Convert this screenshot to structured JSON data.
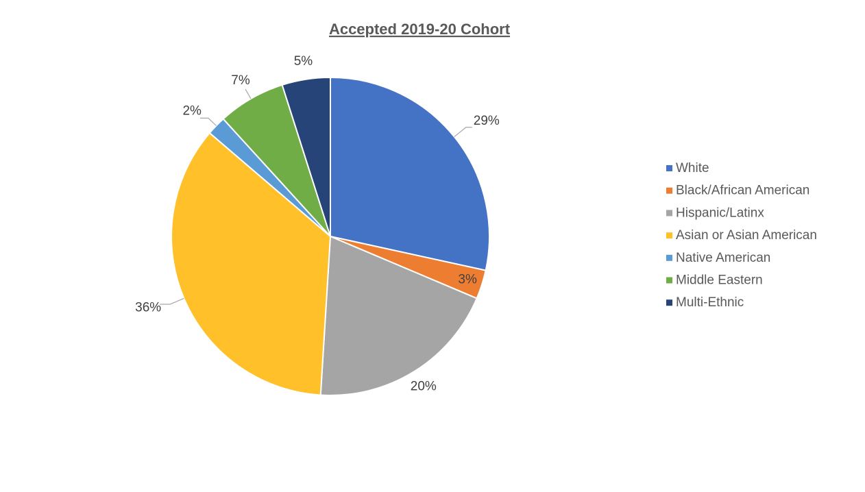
{
  "chart_data": {
    "type": "pie",
    "title": "Accepted 2019-20 Cohort",
    "legend_position": "right",
    "slices": [
      {
        "label": "White",
        "value": 29,
        "display": "29%",
        "color": "#4472C4"
      },
      {
        "label": "Black/African American",
        "value": 3,
        "display": "3%",
        "color": "#ED7D31"
      },
      {
        "label": "Hispanic/Latinx",
        "value": 20,
        "display": "20%",
        "color": "#A5A5A5"
      },
      {
        "label": "Asian or Asian American",
        "value": 36,
        "display": "36%",
        "color": "#FFC02A"
      },
      {
        "label": "Native American",
        "value": 2,
        "display": "2%",
        "color": "#5B9BD5"
      },
      {
        "label": "Middle Eastern",
        "value": 7,
        "display": "7%",
        "color": "#70AD47"
      },
      {
        "label": "Multi-Ethnic",
        "value": 5,
        "display": "5%",
        "color": "#264478"
      }
    ]
  }
}
